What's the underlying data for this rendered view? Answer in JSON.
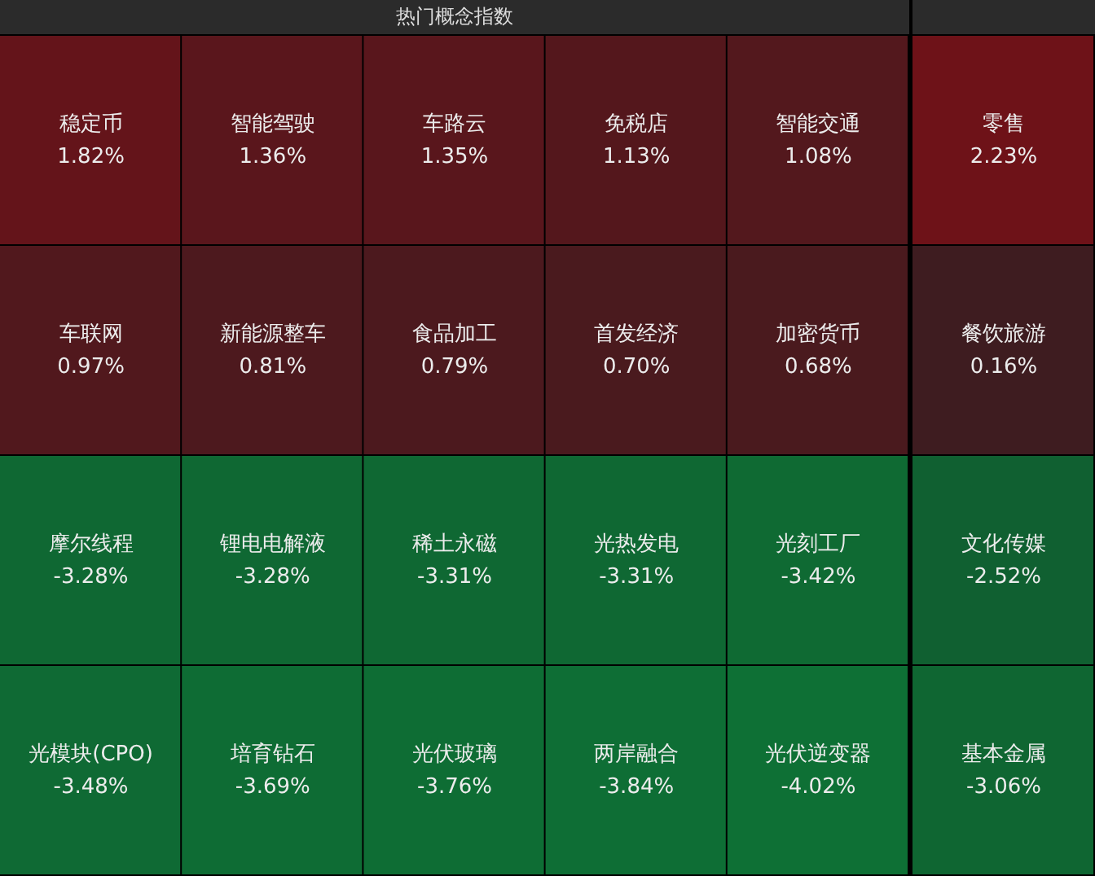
{
  "chart_data": [
    {
      "type": "other",
      "title": "热门概念指数",
      "categories": [
        "稳定币",
        "智能驾驶",
        "车路云",
        "免税店",
        "智能交通",
        "车联网",
        "新能源整车",
        "食品加工",
        "首发经济",
        "加密货币",
        "摩尔线程",
        "锂电电解液",
        "稀土永磁",
        "光热发电",
        "光刻工厂",
        "光模块(CPO)",
        "培育钻石",
        "光伏玻璃",
        "两岸融合",
        "光伏逆变器"
      ],
      "values": [
        1.82,
        1.36,
        1.35,
        1.13,
        1.08,
        0.97,
        0.81,
        0.79,
        0.7,
        0.68,
        -3.28,
        -3.28,
        -3.31,
        -3.31,
        -3.42,
        -3.48,
        -3.69,
        -3.76,
        -3.84,
        -4.02
      ],
      "value_labels": [
        "1.82%",
        "1.36%",
        "1.35%",
        "1.13%",
        "1.08%",
        "0.97%",
        "0.81%",
        "0.79%",
        "0.70%",
        "0.68%",
        "-3.28%",
        "-3.28%",
        "-3.31%",
        "-3.31%",
        "-3.42%",
        "-3.48%",
        "-3.69%",
        "-3.76%",
        "-3.84%",
        "-4.02%"
      ]
    },
    {
      "type": "other",
      "categories": [
        "零售",
        "餐饮旅游",
        "文化传媒",
        "基本金属"
      ],
      "values": [
        2.23,
        0.16,
        -2.52,
        -3.06
      ],
      "value_labels": [
        "2.23%",
        "0.16%",
        "-2.52%",
        "-3.06%"
      ]
    }
  ]
}
